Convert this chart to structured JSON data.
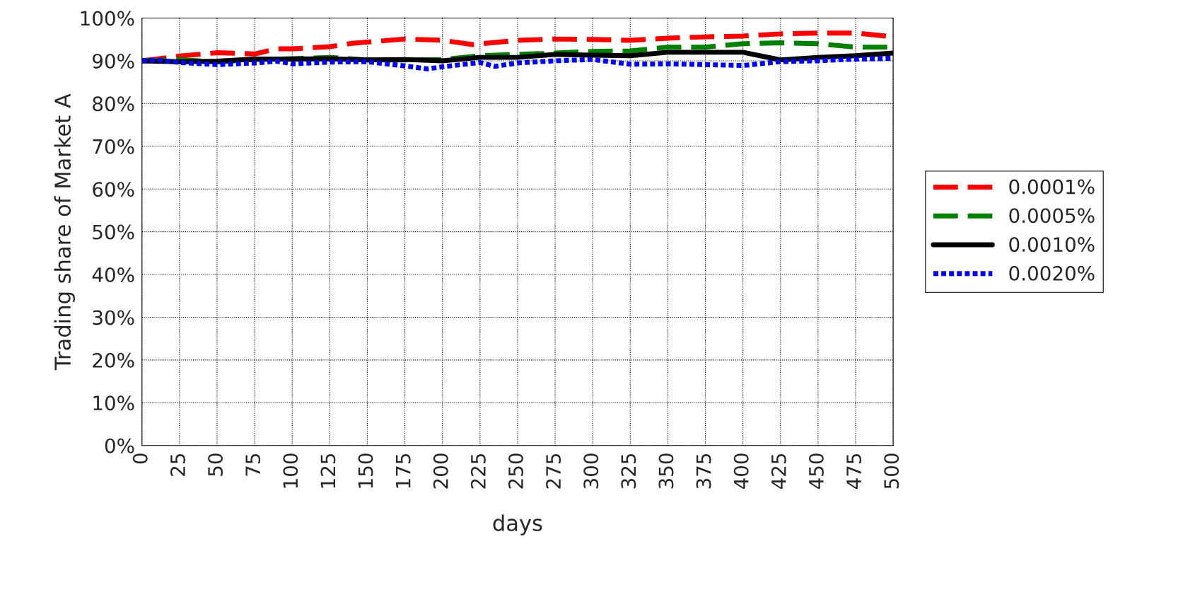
{
  "chart_data": {
    "type": "line",
    "xlabel": "days",
    "ylabel": "Trading share of Market A",
    "xlim": [
      0,
      500
    ],
    "xticks": [
      0,
      25,
      50,
      75,
      100,
      125,
      150,
      175,
      200,
      225,
      250,
      275,
      300,
      325,
      350,
      375,
      400,
      425,
      450,
      475,
      500
    ],
    "ylim": [
      0,
      100
    ],
    "yticks": [
      {
        "value": 0,
        "label": "0%"
      },
      {
        "value": 10,
        "label": "10%"
      },
      {
        "value": 20,
        "label": "20%"
      },
      {
        "value": 30,
        "label": "30%"
      },
      {
        "value": 40,
        "label": "40%"
      },
      {
        "value": 50,
        "label": "50%"
      },
      {
        "value": 60,
        "label": "60%"
      },
      {
        "value": 70,
        "label": "70%"
      },
      {
        "value": 80,
        "label": "80%"
      },
      {
        "value": 90,
        "label": "90%"
      },
      {
        "value": 100,
        "label": "100%"
      }
    ],
    "grid": true,
    "legend": "right",
    "marker": "none",
    "series": [
      {
        "name": "0.0001%",
        "color": "#ff0000",
        "line_style": "dashed",
        "x": [
          0,
          25,
          50,
          75,
          90,
          100,
          125,
          140,
          175,
          200,
          220,
          250,
          275,
          300,
          325,
          350,
          375,
          400,
          425,
          450,
          475,
          500
        ],
        "values": [
          90,
          91.1,
          91.9,
          91.6,
          92.8,
          92.8,
          93.3,
          94.1,
          95.1,
          94.8,
          93.8,
          94.8,
          95.1,
          95,
          94.8,
          95.3,
          95.6,
          95.8,
          96.3,
          96.5,
          96.5,
          95.6
        ]
      },
      {
        "name": "0.0005%",
        "color": "#008000",
        "line_style": "dashed",
        "x": [
          0,
          25,
          50,
          75,
          100,
          125,
          150,
          175,
          200,
          225,
          250,
          275,
          300,
          325,
          350,
          375,
          400,
          425,
          450,
          475,
          500
        ],
        "values": [
          90,
          90.3,
          89.7,
          90.3,
          90.5,
          90.8,
          90.2,
          90.2,
          90.3,
          91.2,
          91.5,
          91.8,
          92.2,
          92.3,
          93.2,
          93.2,
          94,
          94.2,
          94,
          93.2,
          93.2
        ]
      },
      {
        "name": "0.0010%",
        "color": "#000000",
        "line_style": "solid",
        "x": [
          0,
          25,
          50,
          75,
          100,
          125,
          150,
          175,
          200,
          225,
          250,
          275,
          300,
          325,
          350,
          375,
          400,
          425,
          450,
          475,
          500
        ],
        "values": [
          90,
          89.8,
          89.9,
          90.4,
          90.4,
          90.5,
          90.2,
          90.3,
          90,
          90.8,
          90.8,
          91.5,
          91.3,
          91.2,
          92,
          92,
          92,
          90.2,
          90.8,
          91.2,
          91.8
        ]
      },
      {
        "name": "0.0020%",
        "color": "#0000ff",
        "line_style": "dotted",
        "x": [
          0,
          10,
          25,
          50,
          75,
          90,
          100,
          125,
          150,
          175,
          190,
          200,
          225,
          235,
          250,
          275,
          300,
          325,
          350,
          375,
          400,
          425,
          450,
          475,
          500
        ],
        "values": [
          90,
          90.2,
          89.6,
          89.1,
          89.5,
          89.9,
          89.3,
          89.7,
          89.8,
          88.8,
          88.1,
          88.6,
          89.6,
          88.7,
          89.5,
          90,
          90.3,
          89.2,
          89.3,
          89.1,
          88.9,
          89.8,
          90,
          90.4,
          90.6
        ]
      }
    ]
  }
}
